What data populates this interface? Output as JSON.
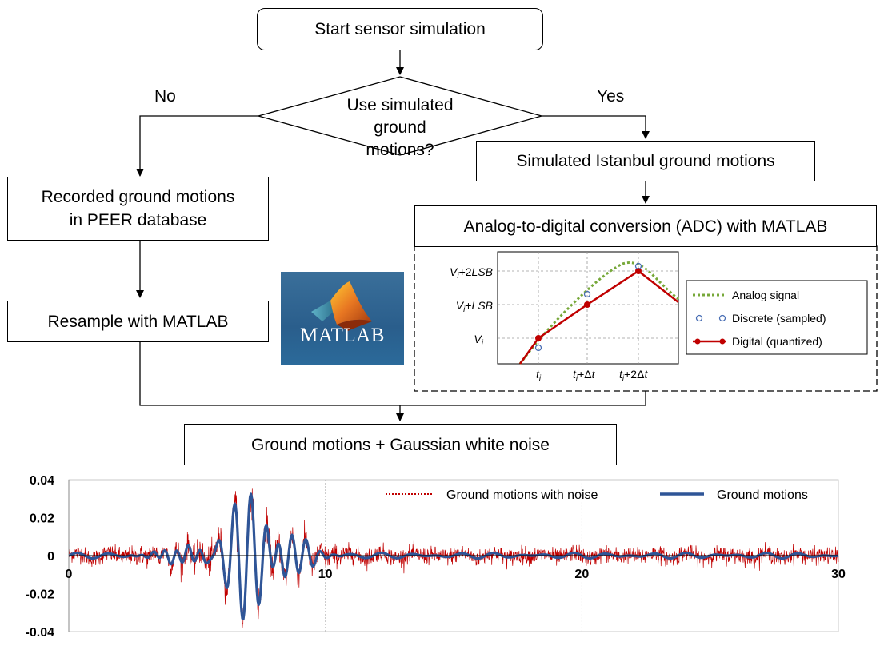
{
  "flowchart": {
    "start": "Start sensor simulation",
    "decision_line1": "Use simulated",
    "decision_line2": "ground motions?",
    "no_label": "No",
    "yes_label": "Yes",
    "recorded_line1": "Recorded ground motions",
    "recorded_line2": "in PEER database",
    "resample": "Resample with MATLAB",
    "simulated": "Simulated Istanbul ground motions",
    "adc_title": "Analog-to-digital conversion (ADC) with MATLAB",
    "merge": "Ground motions + Gaussian white noise"
  },
  "logo": {
    "text": "MATLAB",
    "icon": "matlab-membrane-icon"
  },
  "adc_plot": {
    "y_labels": [
      {
        "main": "V",
        "sub": "i",
        "rest": "+2",
        "rest_italic": "LSB"
      },
      {
        "main": "V",
        "sub": "i",
        "rest": "+",
        "rest_italic": "LSB"
      },
      {
        "main": "V",
        "sub": "i",
        "rest": "",
        "rest_italic": ""
      }
    ],
    "x_labels": [
      {
        "main": "t",
        "sub": "i",
        "rest": "",
        "rest_italic": ""
      },
      {
        "main": "t",
        "sub": "i",
        "rest": "+Δ",
        "rest_italic": "t"
      },
      {
        "main": "t",
        "sub": "i",
        "rest": "+2Δ",
        "rest_italic": "t"
      }
    ],
    "legend": [
      "Analog signal",
      "Discrete (sampled)",
      "Digital (quantized)"
    ],
    "colors": {
      "analog": "#77a83a",
      "discrete": "#4a6fb5",
      "digital": "#c00000"
    }
  },
  "chart_data": {
    "type": "line",
    "series": [
      {
        "name": "Ground motions with noise",
        "color": "#c00000"
      },
      {
        "name": "Ground motions",
        "color": "#2f5597"
      }
    ],
    "xlim": [
      0,
      30
    ],
    "ylim": [
      -0.04,
      0.04
    ],
    "x_ticks": [
      "0",
      "10",
      "20",
      "30"
    ],
    "y_ticks": [
      "0.04",
      "0.02",
      "0",
      "-0.02",
      "-0.04"
    ],
    "noise_amplitude": 0.008,
    "ground_motion_peaks": [
      {
        "t": 6.1,
        "v": 0.033
      },
      {
        "t": 6.55,
        "v": -0.027
      },
      {
        "t": 7.1,
        "v": 0.039
      },
      {
        "t": 7.55,
        "v": -0.036
      },
      {
        "t": 7.8,
        "v": -0.035
      }
    ]
  }
}
